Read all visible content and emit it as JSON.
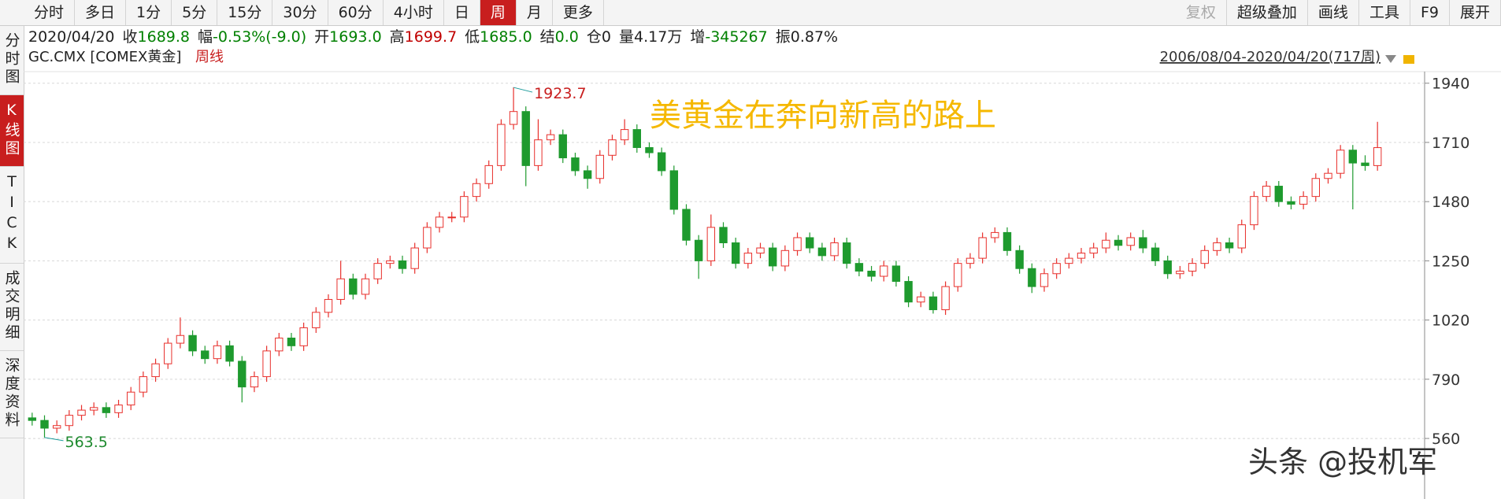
{
  "toolbar": {
    "left": [
      "分时",
      "多日",
      "1分",
      "5分",
      "15分",
      "30分",
      "60分",
      "4小时",
      "日",
      "周",
      "月",
      "更多"
    ],
    "active": 9,
    "right": [
      "复权",
      "超级叠加",
      "画线",
      "工具",
      "F9",
      "展开"
    ],
    "disabled": 0
  },
  "sidebar": {
    "tabs": [
      "分时图",
      "K线图",
      "TICK",
      "成交明细",
      "深度资料"
    ],
    "active": 1
  },
  "info": {
    "date": "2020/04/20",
    "items": [
      {
        "label": "收",
        "value": "1689.8",
        "color": "#008000"
      },
      {
        "label": "幅",
        "value": "-0.53%(-9.0)",
        "color": "#008000"
      },
      {
        "label": "开",
        "value": "1693.0",
        "color": "#008000"
      },
      {
        "label": "高",
        "value": "1699.7",
        "color": "#c00000"
      },
      {
        "label": "低",
        "value": "1685.0",
        "color": "#008000"
      },
      {
        "label": "结",
        "value": "0.0",
        "color": "#008000"
      },
      {
        "label": "仓",
        "value": "0",
        "color": "#222222"
      },
      {
        "label": "量",
        "value": "4.17万",
        "color": "#222222"
      },
      {
        "label": "增",
        "value": "-345267",
        "color": "#008000"
      },
      {
        "label": "振",
        "value": "0.87%",
        "color": "#222222"
      }
    ]
  },
  "chart_data": {
    "type": "candlestick",
    "symbol": "GC.CMX [COMEX黄金]",
    "period": "周线",
    "range": "2006/08/04-2020/04/20(717周)",
    "annotation": "美黄金在奔向新高的路上",
    "watermark": "头条 @投机军",
    "ylim": [
      337,
      1985
    ],
    "yticks": [
      1940,
      1710,
      1480,
      1250,
      1020,
      790,
      560
    ],
    "grid": true,
    "up_color": "#e8302c",
    "down_color": "#1e9a2e",
    "candles": {
      "open": [
        640,
        630,
        600,
        610,
        650,
        670,
        680,
        660,
        690,
        740,
        800,
        850,
        930,
        960,
        900,
        870,
        920,
        860,
        760,
        800,
        900,
        950,
        920,
        990,
        1050,
        1100,
        1180,
        1120,
        1180,
        1240,
        1250,
        1220,
        1300,
        1380,
        1420,
        1420,
        1500,
        1550,
        1620,
        1780,
        1830,
        1620,
        1720,
        1740,
        1650,
        1600,
        1570,
        1660,
        1720,
        1760,
        1690,
        1670,
        1600,
        1450,
        1330,
        1250,
        1380,
        1320,
        1240,
        1280,
        1300,
        1230,
        1290,
        1340,
        1300,
        1270,
        1320,
        1240,
        1210,
        1190,
        1230,
        1170,
        1090,
        1110,
        1060,
        1150,
        1240,
        1260,
        1340,
        1360,
        1290,
        1220,
        1150,
        1200,
        1240,
        1260,
        1280,
        1300,
        1330,
        1310,
        1340,
        1300,
        1250,
        1200,
        1210,
        1240,
        1290,
        1320,
        1300,
        1390,
        1500,
        1540,
        1480,
        1470,
        1500,
        1570,
        1590,
        1680,
        1630,
        1620
      ],
      "high": [
        660,
        650,
        630,
        670,
        690,
        700,
        700,
        710,
        760,
        820,
        870,
        950,
        1030,
        980,
        920,
        940,
        940,
        880,
        820,
        920,
        970,
        970,
        1010,
        1070,
        1120,
        1250,
        1200,
        1200,
        1260,
        1270,
        1270,
        1320,
        1400,
        1440,
        1440,
        1520,
        1570,
        1640,
        1800,
        1923.7,
        1850,
        1800,
        1760,
        1760,
        1670,
        1620,
        1680,
        1740,
        1800,
        1780,
        1710,
        1690,
        1620,
        1470,
        1350,
        1430,
        1400,
        1340,
        1300,
        1320,
        1320,
        1310,
        1360,
        1360,
        1320,
        1340,
        1340,
        1260,
        1230,
        1250,
        1250,
        1190,
        1130,
        1130,
        1170,
        1260,
        1280,
        1360,
        1380,
        1380,
        1310,
        1240,
        1220,
        1260,
        1280,
        1300,
        1320,
        1360,
        1350,
        1360,
        1370,
        1320,
        1270,
        1230,
        1260,
        1310,
        1340,
        1340,
        1410,
        1520,
        1560,
        1560,
        1500,
        1520,
        1590,
        1610,
        1700,
        1700,
        1660,
        1790
      ],
      "low": [
        610,
        563.5,
        580,
        590,
        630,
        650,
        640,
        640,
        670,
        720,
        780,
        830,
        910,
        880,
        850,
        850,
        840,
        700,
        740,
        780,
        880,
        900,
        900,
        970,
        1030,
        1080,
        1100,
        1100,
        1160,
        1220,
        1200,
        1200,
        1280,
        1360,
        1400,
        1400,
        1480,
        1530,
        1600,
        1760,
        1540,
        1600,
        1700,
        1630,
        1580,
        1530,
        1550,
        1640,
        1700,
        1670,
        1650,
        1580,
        1430,
        1310,
        1180,
        1230,
        1300,
        1220,
        1220,
        1260,
        1210,
        1210,
        1270,
        1280,
        1250,
        1250,
        1220,
        1190,
        1170,
        1170,
        1150,
        1070,
        1070,
        1045,
        1040,
        1130,
        1220,
        1240,
        1320,
        1270,
        1200,
        1125,
        1130,
        1180,
        1220,
        1240,
        1260,
        1280,
        1290,
        1290,
        1280,
        1230,
        1180,
        1180,
        1190,
        1220,
        1270,
        1280,
        1280,
        1370,
        1480,
        1460,
        1450,
        1450,
        1480,
        1550,
        1570,
        1450,
        1600,
        1600
      ],
      "close": [
        630,
        600,
        610,
        650,
        670,
        680,
        660,
        690,
        740,
        800,
        850,
        930,
        960,
        900,
        870,
        920,
        860,
        760,
        800,
        900,
        950,
        920,
        990,
        1050,
        1100,
        1180,
        1120,
        1180,
        1240,
        1250,
        1220,
        1300,
        1380,
        1420,
        1420,
        1500,
        1550,
        1620,
        1780,
        1830,
        1620,
        1720,
        1740,
        1650,
        1600,
        1570,
        1660,
        1720,
        1760,
        1690,
        1670,
        1600,
        1450,
        1330,
        1250,
        1380,
        1320,
        1240,
        1280,
        1300,
        1230,
        1290,
        1340,
        1300,
        1270,
        1320,
        1240,
        1210,
        1190,
        1230,
        1170,
        1090,
        1110,
        1060,
        1150,
        1240,
        1260,
        1340,
        1360,
        1290,
        1220,
        1150,
        1200,
        1240,
        1260,
        1280,
        1300,
        1330,
        1310,
        1340,
        1300,
        1250,
        1200,
        1210,
        1240,
        1290,
        1320,
        1300,
        1390,
        1500,
        1540,
        1480,
        1470,
        1500,
        1570,
        1590,
        1680,
        1630,
        1620,
        1689.8
      ]
    }
  }
}
